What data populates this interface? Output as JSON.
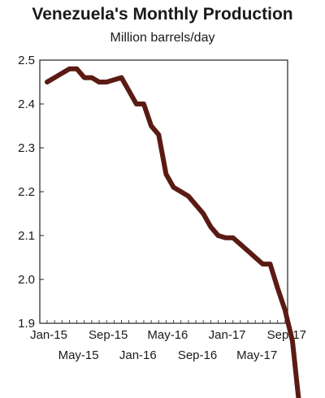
{
  "chart_data": {
    "type": "line",
    "title": "Venezuela's Monthly Production",
    "subtitle": "Million barrels/day",
    "xlabel": "",
    "ylabel": "",
    "ylim": [
      1.9,
      2.5
    ],
    "yticks": [
      "2.5",
      "2.4",
      "2.3",
      "2.2",
      "2.1",
      "2.0",
      "1.9"
    ],
    "ytick_values": [
      2.5,
      2.4,
      2.3,
      2.2,
      2.1,
      2.0,
      1.9
    ],
    "xtick_labels_row1": [
      "Jan-15",
      "Sep-15",
      "May-16",
      "Jan-17",
      "Sep-17"
    ],
    "xtick_labels_row2": [
      "May-15",
      "Jan-16",
      "Sep-16",
      "May-17"
    ],
    "grid": false,
    "legend": "none",
    "line_color": "#5a1b14",
    "series": [
      {
        "x": [
          "Jan-15",
          "Feb-15",
          "Mar-15",
          "Apr-15",
          "May-15",
          "Jun-15",
          "Jul-15",
          "Aug-15",
          "Sep-15",
          "Oct-15",
          "Nov-15",
          "Dec-15",
          "Jan-16",
          "Feb-16",
          "Mar-16",
          "Apr-16",
          "May-16",
          "Jun-16",
          "Jul-16",
          "Aug-16",
          "Sep-16",
          "Oct-16",
          "Nov-16",
          "Dec-16",
          "Jan-17",
          "Feb-17",
          "Mar-17",
          "Apr-17",
          "May-17",
          "Jun-17",
          "Jul-17",
          "Aug-17",
          "Sep-17",
          "Oct-17",
          "Nov-17"
        ],
        "values": [
          2.45,
          2.46,
          2.47,
          2.48,
          2.48,
          2.46,
          2.46,
          2.45,
          2.45,
          2.455,
          2.46,
          2.43,
          2.4,
          2.4,
          2.35,
          2.33,
          2.24,
          2.21,
          2.2,
          2.19,
          2.17,
          2.15,
          2.12,
          2.1,
          2.095,
          2.095,
          2.08,
          2.065,
          2.05,
          2.035,
          2.035,
          1.98,
          1.93,
          1.86,
          1.7
        ]
      }
    ]
  }
}
